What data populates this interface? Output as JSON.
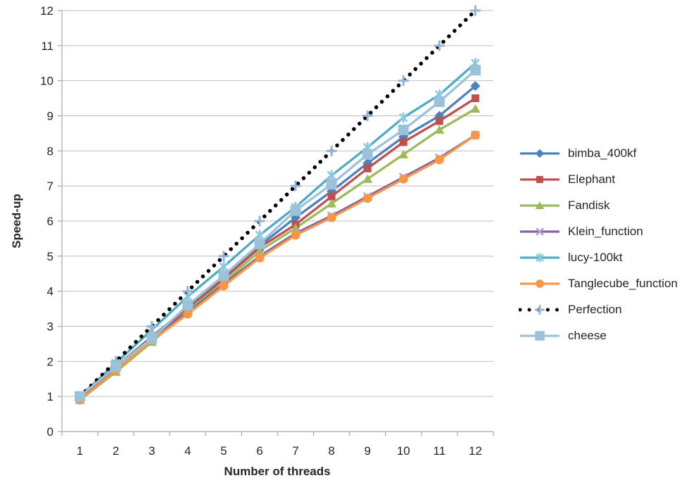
{
  "chart_data": {
    "type": "line",
    "title": "",
    "xlabel": "Number of threads",
    "ylabel": "Speed-up",
    "x": [
      1,
      2,
      3,
      4,
      5,
      6,
      7,
      8,
      9,
      10,
      11,
      12
    ],
    "xticks": [
      "1",
      "2",
      "3",
      "4",
      "5",
      "6",
      "7",
      "8",
      "9",
      "10",
      "11",
      "12"
    ],
    "yticks": [
      "0",
      "1",
      "2",
      "3",
      "4",
      "5",
      "6",
      "7",
      "8",
      "9",
      "10",
      "11",
      "12"
    ],
    "ylim": [
      0,
      12
    ],
    "grid": "horizontal",
    "legend_position": "right",
    "gridline_color": "#BFBFBF",
    "axis_color": "#A6A6A6",
    "text_color": "#262626",
    "series": [
      {
        "name": "bimba_400kf",
        "color": "#4F81BD",
        "marker": "diamond",
        "marker_color": "#4F81BD",
        "line_style": "solid",
        "values": [
          0.95,
          1.85,
          2.7,
          3.55,
          4.4,
          5.3,
          6.1,
          6.85,
          7.65,
          8.4,
          9.0,
          9.85
        ]
      },
      {
        "name": "Elephant",
        "color": "#C0504D",
        "marker": "square",
        "marker_color": "#C0504D",
        "line_style": "solid",
        "values": [
          0.95,
          1.85,
          2.7,
          3.5,
          4.35,
          5.25,
          5.9,
          6.7,
          7.5,
          8.25,
          8.85,
          9.5
        ]
      },
      {
        "name": "Fandisk",
        "color": "#9BBB59",
        "marker": "triangle",
        "marker_color": "#9BBB59",
        "line_style": "solid",
        "values": [
          0.9,
          1.7,
          2.55,
          3.45,
          4.25,
          5.15,
          5.8,
          6.5,
          7.2,
          7.9,
          8.6,
          9.2
        ]
      },
      {
        "name": "Klein_function",
        "color": "#8064A2",
        "marker": "x",
        "marker_color": "#B3A2C7",
        "line_style": "solid",
        "values": [
          0.95,
          1.8,
          2.65,
          3.4,
          4.2,
          5.0,
          5.65,
          6.15,
          6.7,
          7.25,
          7.8,
          8.45
        ]
      },
      {
        "name": "lucy-100kt",
        "color": "#4BACC6",
        "marker": "asterisk",
        "marker_color": "#8DC8DF",
        "line_style": "solid",
        "values": [
          1.0,
          1.95,
          2.9,
          3.85,
          4.7,
          5.6,
          6.4,
          7.3,
          8.1,
          8.95,
          9.6,
          10.5
        ]
      },
      {
        "name": "Tanglecube_function",
        "color": "#F79646",
        "marker": "circle",
        "marker_color": "#F79646",
        "line_style": "solid",
        "values": [
          0.9,
          1.75,
          2.6,
          3.35,
          4.15,
          4.95,
          5.6,
          6.1,
          6.65,
          7.2,
          7.75,
          8.45
        ]
      },
      {
        "name": "Perfection",
        "color": "#000000",
        "marker": "plus",
        "marker_color": "#95B3D7",
        "line_style": "dotted",
        "values": [
          1,
          2,
          3,
          4,
          5,
          6,
          7,
          8,
          9,
          10,
          11,
          12
        ]
      },
      {
        "name": "cheese",
        "color": "#9BC2D9",
        "marker": "square-large",
        "marker_color": "#9BC2D9",
        "line_style": "solid",
        "values": [
          1.0,
          1.85,
          2.65,
          3.6,
          4.45,
          5.35,
          6.3,
          7.05,
          7.9,
          8.6,
          9.4,
          10.3
        ]
      }
    ]
  }
}
